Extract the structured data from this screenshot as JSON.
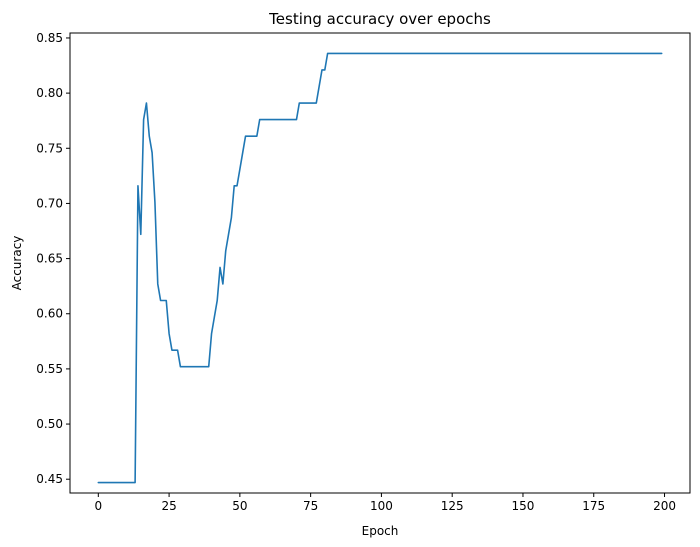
{
  "chart_data": {
    "type": "line",
    "title": "Testing accuracy over epochs",
    "xlabel": "Epoch",
    "ylabel": "Accuracy",
    "xlim": [
      -10,
      209
    ],
    "ylim": [
      0.4375,
      0.8545
    ],
    "xticks": [
      0,
      25,
      50,
      75,
      100,
      125,
      150,
      175,
      200
    ],
    "yticks": [
      0.45,
      0.5,
      0.55,
      0.6,
      0.65,
      0.7,
      0.75,
      0.8,
      0.85
    ],
    "grid": false,
    "series": [
      {
        "color": "#1f77b4",
        "x": [
          0,
          13,
          14,
          15,
          16,
          17,
          18,
          19,
          20,
          21,
          22,
          23,
          24,
          25,
          26,
          27,
          28,
          29,
          30,
          35,
          39,
          40,
          41,
          42,
          43,
          44,
          45,
          46,
          47,
          48,
          49,
          50,
          51,
          52,
          53,
          54,
          55,
          56,
          57,
          58,
          59,
          60,
          65,
          70,
          71,
          72,
          73,
          74,
          75,
          76,
          77,
          78,
          79,
          80,
          81,
          82,
          85,
          90,
          100,
          120,
          150,
          199
        ],
        "y": [
          0.447,
          0.447,
          0.716,
          0.672,
          0.776,
          0.791,
          0.761,
          0.746,
          0.701,
          0.627,
          0.612,
          0.612,
          0.612,
          0.582,
          0.567,
          0.567,
          0.567,
          0.552,
          0.552,
          0.552,
          0.552,
          0.582,
          0.597,
          0.612,
          0.642,
          0.627,
          0.657,
          0.672,
          0.687,
          0.716,
          0.716,
          0.731,
          0.746,
          0.761,
          0.761,
          0.761,
          0.761,
          0.761,
          0.776,
          0.776,
          0.776,
          0.776,
          0.776,
          0.776,
          0.791,
          0.791,
          0.791,
          0.791,
          0.791,
          0.791,
          0.791,
          0.806,
          0.821,
          0.821,
          0.836,
          0.836,
          0.836,
          0.836,
          0.836,
          0.836,
          0.836,
          0.836
        ]
      }
    ]
  }
}
